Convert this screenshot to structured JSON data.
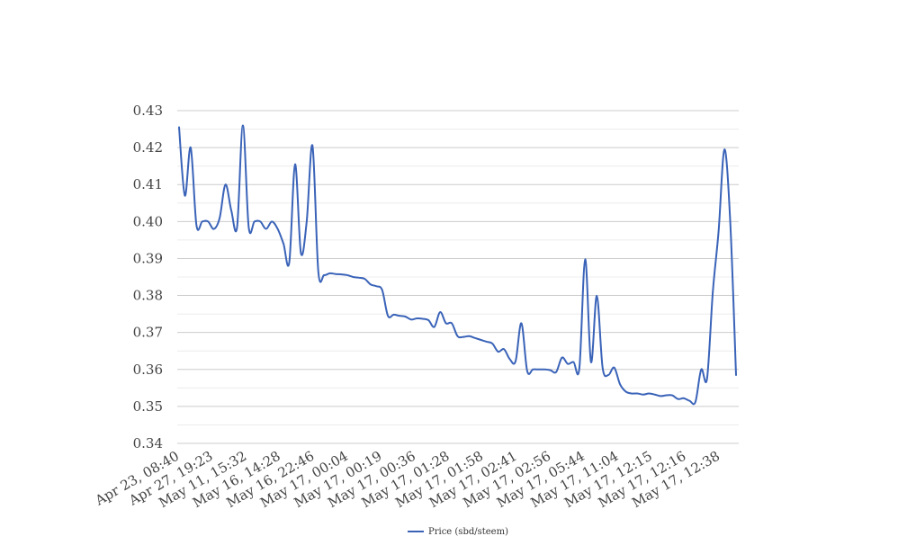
{
  "chart_data": {
    "type": "line",
    "title": "",
    "xlabel": "",
    "ylabel": "",
    "ylim": [
      0.34,
      0.43
    ],
    "y_ticks": [
      "0.34",
      "0.35",
      "0.36",
      "0.37",
      "0.38",
      "0.39",
      "0.40",
      "0.41",
      "0.42",
      "0.43"
    ],
    "x_tick_labels": [
      "Apr 23, 08:40",
      "Apr 27, 19:23",
      "May 11, 15:32",
      "May 16, 14:28",
      "May 16, 22:46",
      "May 17, 00:04",
      "May 17, 00:19",
      "May 17, 00:36",
      "May 17, 01:28",
      "May 17, 01:58",
      "May 17, 02:41",
      "May 17, 02:56",
      "May 17, 05:44",
      "May 17, 11:04",
      "May 17, 12:15",
      "May 17, 12:16",
      "May 17, 12:38"
    ],
    "grid": true,
    "legend_position": "bottom",
    "series": [
      {
        "name": "Price (sbd/steem)",
        "color": "#3a63b8",
        "values": [
          0.4255,
          0.407,
          0.42,
          0.399,
          0.4,
          0.4,
          0.398,
          0.401,
          0.41,
          0.403,
          0.3985,
          0.426,
          0.3985,
          0.4,
          0.4,
          0.398,
          0.4,
          0.398,
          0.394,
          0.389,
          0.4155,
          0.3915,
          0.4,
          0.4205,
          0.3865,
          0.3855,
          0.386,
          0.3858,
          0.3857,
          0.3855,
          0.385,
          0.3848,
          0.3845,
          0.383,
          0.3825,
          0.3815,
          0.3745,
          0.3748,
          0.3745,
          0.3743,
          0.3735,
          0.3738,
          0.3737,
          0.3733,
          0.3715,
          0.3755,
          0.3725,
          0.3725,
          0.369,
          0.3688,
          0.369,
          0.3685,
          0.368,
          0.3675,
          0.367,
          0.3648,
          0.3655,
          0.3628,
          0.3622,
          0.3725,
          0.3596,
          0.36,
          0.36,
          0.36,
          0.3598,
          0.3593,
          0.3632,
          0.3615,
          0.362,
          0.3604,
          0.3898,
          0.362,
          0.3799,
          0.3605,
          0.3585,
          0.3605,
          0.356,
          0.354,
          0.3535,
          0.3535,
          0.3532,
          0.3535,
          0.3532,
          0.3528,
          0.353,
          0.353,
          0.352,
          0.3522,
          0.3515,
          0.3512,
          0.36,
          0.3575,
          0.381,
          0.3975,
          0.4195,
          0.4,
          0.3585
        ]
      }
    ]
  }
}
